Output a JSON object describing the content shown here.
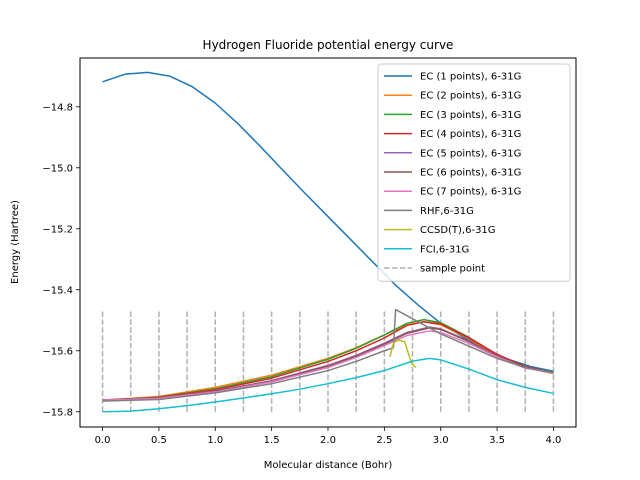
{
  "chart_data": {
    "type": "line",
    "title": "Hydrogen Fluoride potential energy curve",
    "xlabel": "Molecular distance (Bohr)",
    "ylabel": "Energy (Hartree)",
    "xlim": [
      -0.2,
      4.2
    ],
    "ylim": [
      -15.85,
      -14.64
    ],
    "xticks": [
      0.0,
      0.5,
      1.0,
      1.5,
      2.0,
      2.5,
      3.0,
      3.5,
      4.0
    ],
    "xtick_labels": [
      "0.0",
      "0.5",
      "1.0",
      "1.5",
      "2.0",
      "2.5",
      "3.0",
      "3.5",
      "4.0"
    ],
    "yticks": [
      -15.8,
      -15.6,
      -15.4,
      -15.2,
      -15.0,
      -14.8
    ],
    "ytick_labels": [
      "−15.8",
      "−15.6",
      "−15.4",
      "−15.2",
      "−15.0",
      "−14.8"
    ],
    "grid": false,
    "legend_position": "top-right",
    "series": [
      {
        "name": "EC (1 points), 6-31G",
        "color": "#1f77b4",
        "x": [
          0.0,
          0.2,
          0.4,
          0.6,
          0.8,
          1.0,
          1.2,
          1.4,
          1.6,
          1.8,
          2.0,
          2.2,
          2.4,
          2.6,
          2.8,
          3.0,
          3.2,
          3.4,
          3.6,
          3.8,
          4.0
        ],
        "y": [
          -14.718,
          -14.693,
          -14.687,
          -14.7,
          -14.735,
          -14.788,
          -14.855,
          -14.93,
          -15.008,
          -15.085,
          -15.16,
          -15.235,
          -15.31,
          -15.385,
          -15.45,
          -15.51,
          -15.555,
          -15.595,
          -15.628,
          -15.652,
          -15.667
        ]
      },
      {
        "name": "EC (2 points), 6-31G",
        "color": "#ff7f0e",
        "x": [
          0.0,
          0.5,
          1.0,
          1.5,
          2.0,
          2.25,
          2.5,
          2.7,
          2.85,
          3.0,
          3.25,
          3.5,
          3.75,
          4.0
        ],
        "y": [
          -15.762,
          -15.75,
          -15.72,
          -15.68,
          -15.625,
          -15.59,
          -15.548,
          -15.515,
          -15.505,
          -15.515,
          -15.56,
          -15.615,
          -15.655,
          -15.675
        ]
      },
      {
        "name": "EC (3 points), 6-31G",
        "color": "#2ca02c",
        "x": [
          0.0,
          0.5,
          1.0,
          1.5,
          2.0,
          2.25,
          2.5,
          2.7,
          2.85,
          3.0,
          3.25,
          3.5,
          3.75,
          4.0
        ],
        "y": [
          -15.762,
          -15.752,
          -15.725,
          -15.685,
          -15.628,
          -15.592,
          -15.548,
          -15.51,
          -15.498,
          -15.508,
          -15.556,
          -15.612,
          -15.652,
          -15.672
        ]
      },
      {
        "name": "EC (4 points), 6-31G",
        "color": "#d62728",
        "x": [
          0.0,
          0.5,
          1.0,
          1.5,
          2.0,
          2.25,
          2.5,
          2.7,
          2.85,
          3.0,
          3.25,
          3.5,
          3.75,
          4.0
        ],
        "y": [
          -15.762,
          -15.753,
          -15.728,
          -15.69,
          -15.635,
          -15.6,
          -15.558,
          -15.517,
          -15.505,
          -15.512,
          -15.558,
          -15.612,
          -15.652,
          -15.672
        ]
      },
      {
        "name": "EC (5 points), 6-31G",
        "color": "#9467bd",
        "x": [
          0.0,
          0.5,
          1.0,
          1.5,
          2.0,
          2.25,
          2.5,
          2.7,
          2.9,
          3.0,
          3.25,
          3.5,
          3.75,
          4.0
        ],
        "y": [
          -15.762,
          -15.755,
          -15.732,
          -15.698,
          -15.648,
          -15.615,
          -15.575,
          -15.54,
          -15.522,
          -15.528,
          -15.568,
          -15.617,
          -15.655,
          -15.672
        ]
      },
      {
        "name": "EC (6 points), 6-31G",
        "color": "#8c564b",
        "x": [
          0.0,
          0.5,
          1.0,
          1.5,
          2.0,
          2.25,
          2.5,
          2.7,
          2.9,
          3.0,
          3.25,
          3.5,
          3.75,
          4.0
        ],
        "y": [
          -15.762,
          -15.755,
          -15.733,
          -15.7,
          -15.65,
          -15.618,
          -15.578,
          -15.543,
          -15.525,
          -15.53,
          -15.57,
          -15.618,
          -15.655,
          -15.672
        ]
      },
      {
        "name": "EC (7 points), 6-31G",
        "color": "#e377c2",
        "x": [
          0.0,
          0.5,
          1.0,
          1.5,
          2.0,
          2.25,
          2.5,
          2.7,
          2.9,
          3.0,
          3.25,
          3.5,
          3.75,
          4.0
        ],
        "y": [
          -15.762,
          -15.756,
          -15.735,
          -15.702,
          -15.655,
          -15.622,
          -15.583,
          -15.55,
          -15.535,
          -15.54,
          -15.576,
          -15.62,
          -15.657,
          -15.673
        ]
      },
      {
        "name": "RHF,6-31G",
        "color": "#7f7f7f",
        "x": [
          0.0,
          0.5,
          1.0,
          1.5,
          2.0,
          2.25,
          2.5,
          2.58,
          2.6,
          2.8,
          3.0,
          3.25,
          3.5,
          3.75,
          4.0
        ],
        "y": [
          -15.765,
          -15.76,
          -15.738,
          -15.708,
          -15.665,
          -15.635,
          -15.6,
          -15.59,
          -15.465,
          -15.505,
          -15.545,
          -15.585,
          -15.625,
          -15.655,
          -15.672
        ]
      },
      {
        "name": "CCSD(T),6-31G",
        "color": "#bcbd22",
        "x": [
          2.55,
          2.58,
          2.62,
          2.68,
          2.74,
          2.78
        ],
        "y": [
          -15.62,
          -15.575,
          -15.565,
          -15.57,
          -15.64,
          -15.655
        ]
      },
      {
        "name": "FCI,6-31G",
        "color": "#17becf",
        "x": [
          0.0,
          0.25,
          0.5,
          0.75,
          1.0,
          1.25,
          1.5,
          1.75,
          2.0,
          2.25,
          2.5,
          2.75,
          2.9,
          3.0,
          3.25,
          3.5,
          3.75,
          4.0
        ],
        "y": [
          -15.8,
          -15.798,
          -15.79,
          -15.78,
          -15.768,
          -15.755,
          -15.741,
          -15.726,
          -15.708,
          -15.688,
          -15.665,
          -15.634,
          -15.625,
          -15.63,
          -15.66,
          -15.695,
          -15.72,
          -15.74
        ]
      }
    ],
    "sample_points": {
      "name": "sample point",
      "color": "#b0b0b0",
      "x": [
        0.0,
        0.25,
        0.5,
        0.75,
        1.0,
        1.25,
        1.5,
        1.75,
        2.0,
        2.25,
        2.5,
        2.75,
        3.0,
        3.25,
        3.5,
        3.75,
        4.0
      ],
      "y_range": [
        -15.8,
        -15.465
      ]
    }
  }
}
